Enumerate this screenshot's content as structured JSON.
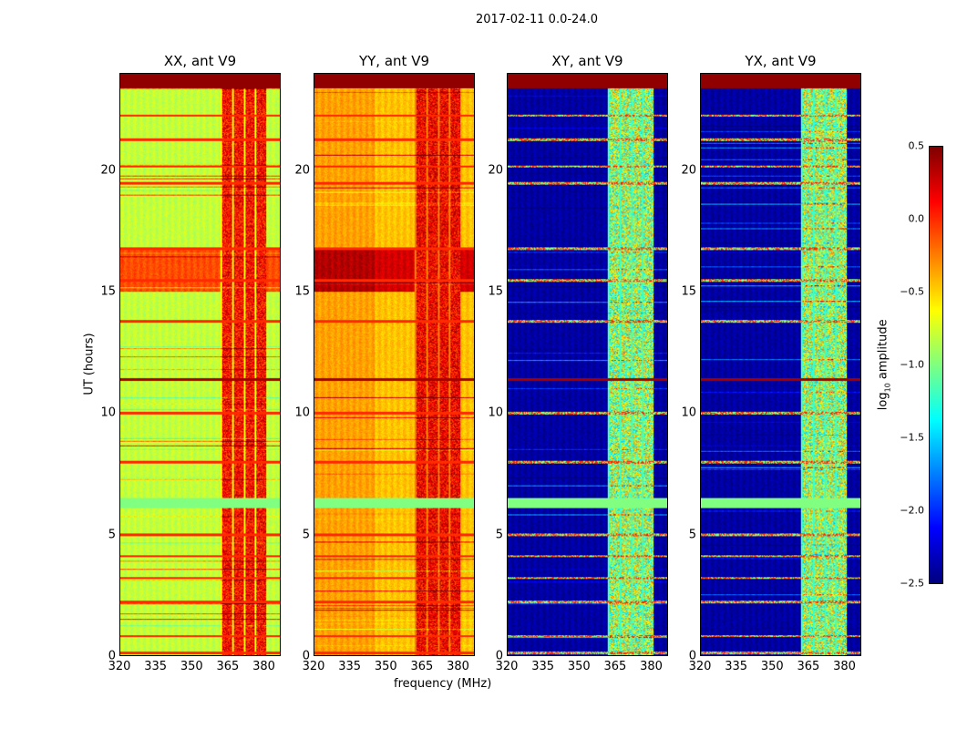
{
  "chart_data": {
    "type": "heatmap",
    "title": "2017-02-11 0.0-24.0",
    "xlabel": "frequency (MHz)",
    "ylabel": "UT (hours)",
    "xlim": [
      320,
      387
    ],
    "ylim": [
      0,
      24
    ],
    "xticks": [
      "320",
      "335",
      "350",
      "365",
      "380"
    ],
    "yticks": [
      "0",
      "5",
      "10",
      "15",
      "20"
    ],
    "panels": [
      {
        "title": "XX, ant V9",
        "base_log_amp": -0.8,
        "rfi_log_amp": 0.1
      },
      {
        "title": "YY, ant V9",
        "base_log_amp": -0.45,
        "rfi_log_amp": 0.15
      },
      {
        "title": "XY, ant V9",
        "base_log_amp": -2.4,
        "rfi_log_amp": -0.9
      },
      {
        "title": "YX, ant V9",
        "base_log_amp": -2.4,
        "rfi_log_amp": -0.9
      }
    ],
    "rfi_band_mhz": [
      362,
      381
    ],
    "flag_rows_hours": [
      0.1,
      0.8,
      2.2,
      3.2,
      4.1,
      5.0,
      6.3,
      8.0,
      10.0,
      11.4,
      13.8,
      15.5,
      16.8,
      19.5,
      20.2,
      21.3,
      22.3,
      23.7
    ],
    "colorbar": {
      "label": "log10 amplitude",
      "vmin": -2.5,
      "vmax": 0.5,
      "ticks": [
        "0.5",
        "0.0",
        "−0.5",
        "−1.0",
        "−1.5",
        "−2.0",
        "−2.5"
      ]
    }
  }
}
